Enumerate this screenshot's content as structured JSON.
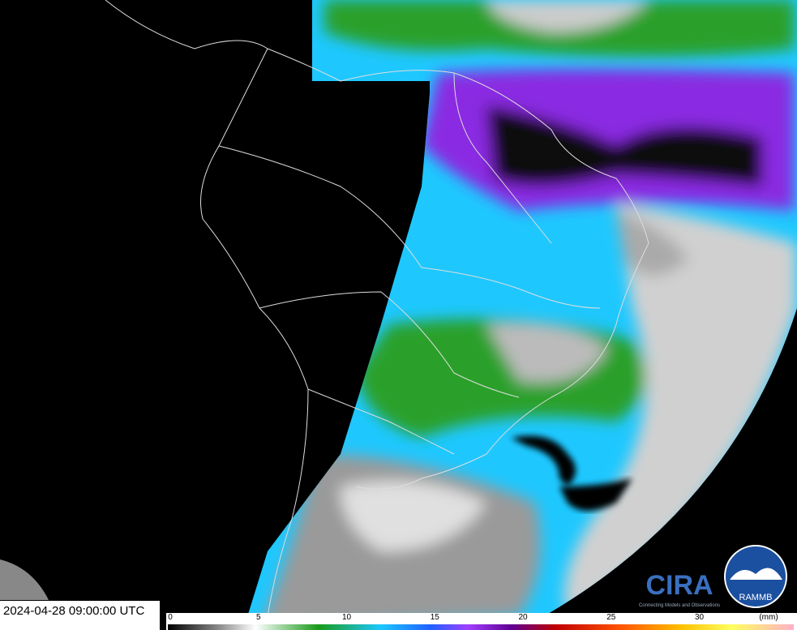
{
  "timestamp": "2024-04-28 09:00:00 UTC",
  "colorbar": {
    "ticks": [
      0,
      5,
      10,
      15,
      20,
      25,
      30
    ],
    "unit": "(mm)"
  },
  "logos": {
    "cira": "CIRA",
    "cira_tagline": "Connecting Models and Observations",
    "rammb": "RAMMB"
  }
}
